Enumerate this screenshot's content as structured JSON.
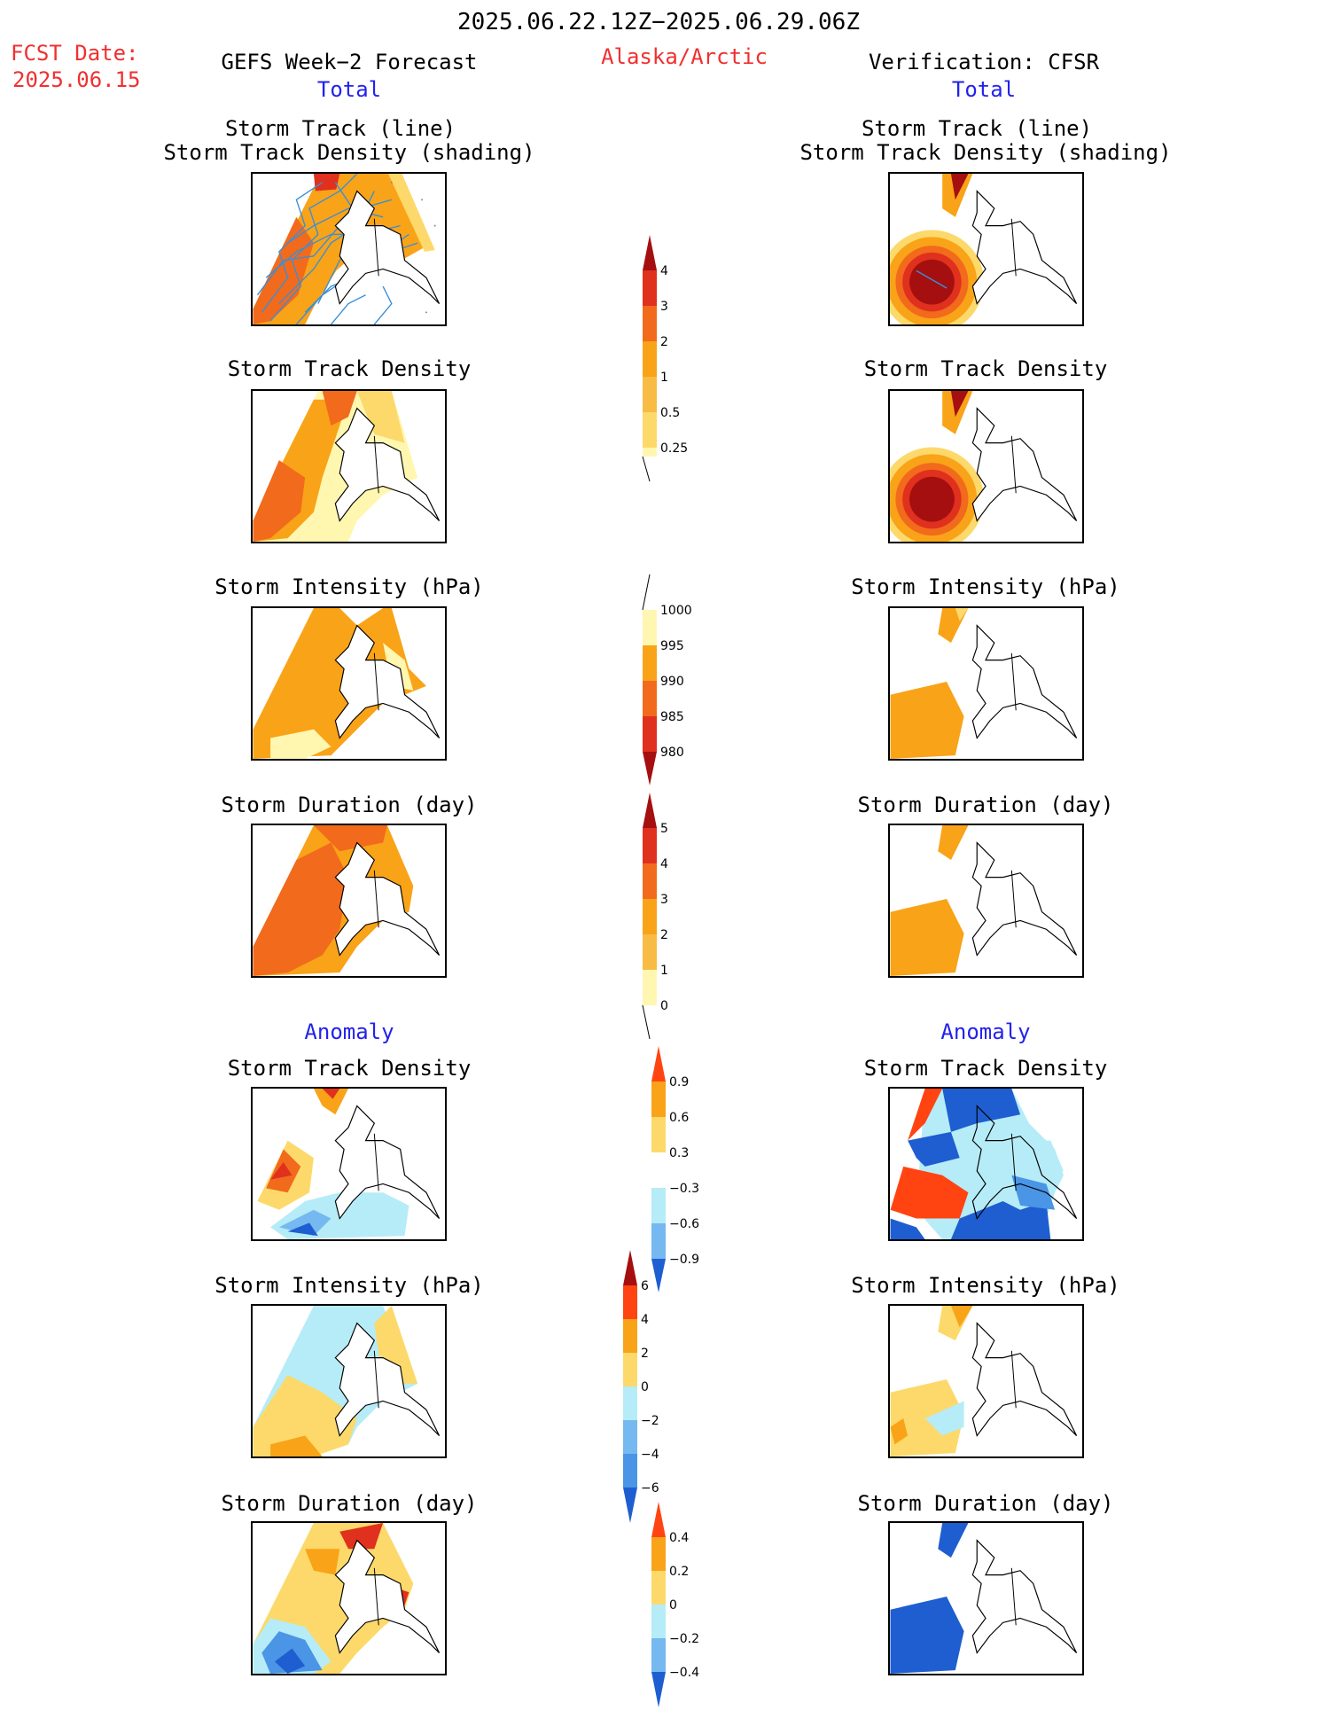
{
  "header": {
    "title": "2025.06.22.12Z−2025.06.29.06Z",
    "fcst_label": "FCST Date:",
    "fcst_date": "2025.06.15",
    "left_title": "GEFS Week−2 Forecast",
    "region": "Alaska/Arctic",
    "right_title": "Verification: CFSR"
  },
  "sections": {
    "total": "Total",
    "anomaly": "Anomaly"
  },
  "panel_titles": {
    "track_line": "Storm Track (line)",
    "track_density_shading": "Storm Track Density (shading)",
    "track_density": "Storm Track Density",
    "intensity": "Storm Intensity (hPa)",
    "duration": "Storm Duration (day)"
  },
  "colorbars": {
    "density": [
      "4",
      "3",
      "2",
      "1",
      "0.5",
      "0.25"
    ],
    "intensity": [
      "1000",
      "995",
      "990",
      "985",
      "980"
    ],
    "duration": [
      "5",
      "4",
      "3",
      "2",
      "1",
      "0"
    ],
    "density_anom": [
      "0.9",
      "0.6",
      "0.3",
      "−0.3",
      "−0.6",
      "−0.9"
    ],
    "intensity_anom": [
      "6",
      "4",
      "2",
      "0",
      "−2",
      "−4",
      "−6"
    ],
    "duration_anom": [
      "0.4",
      "0.2",
      "0",
      "−0.2",
      "−0.4"
    ]
  },
  "colors": {
    "text_red": "#f03030",
    "text_blue": "#2222ee",
    "pale_yellow": "#fff7b0",
    "yellow": "#fcd96a",
    "light_orange": "#f8bb44",
    "orange": "#f9a318",
    "dark_orange": "#f26a1c",
    "red": "#e0301e",
    "dark_red": "#a50f0f",
    "light_blue": "#b5ecf7",
    "mid_blue": "#76b8f0",
    "blue": "#4a95e6",
    "dark_blue": "#1e5ed1",
    "track_line": "#3b8fd6"
  }
}
